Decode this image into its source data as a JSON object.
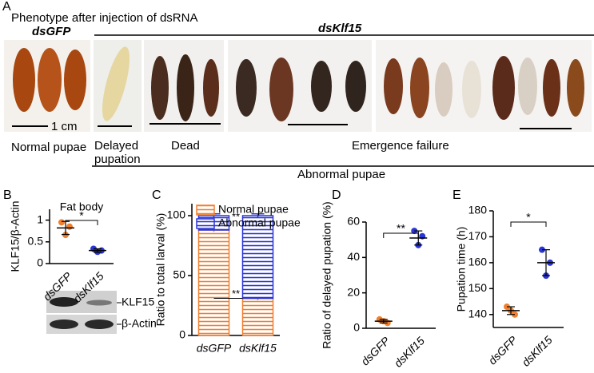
{
  "panel_a": {
    "label": "A",
    "title": "Phenotype after injection of dsRNA",
    "groups": [
      "dsGFP",
      "dsKlf15"
    ],
    "scale": "1 cm",
    "phenotypes": [
      "Normal pupae",
      "Delayed pupation",
      "Dead",
      "Emergence failure"
    ],
    "abnormal": "Abnormal pupae"
  },
  "chart_data": [
    {
      "type": "dot",
      "label": "B",
      "title": "Fat body",
      "ylabel": "KLF15/β-Actin",
      "categories": [
        "dsGFP",
        "dsKlf15"
      ],
      "colors": [
        "#f07f2e",
        "#2a35d6"
      ],
      "points": [
        [
          0.95,
          0.85,
          0.66
        ],
        [
          0.34,
          0.3,
          0.27
        ]
      ],
      "means": [
        0.82,
        0.3
      ],
      "sd": [
        0.15,
        0.04
      ],
      "ylim": [
        0,
        1.25
      ],
      "yticks": [
        0,
        0.5,
        1
      ],
      "significance": "*",
      "blot_labels": [
        "KLF15",
        "β-Actin"
      ]
    },
    {
      "type": "stacked_bar",
      "label": "C",
      "ylabel": "Ratio to total larval (%)",
      "categories": [
        "dsGFP",
        "dsKlf15"
      ],
      "series": [
        {
          "name": "Normal pupae",
          "color": "#f07f2e",
          "values": [
            88,
            31
          ],
          "errors": [
            1.5,
            1.5
          ]
        },
        {
          "name": "Abnormal pupae",
          "color": "#2a35d6",
          "values": [
            12,
            69
          ],
          "errors": [
            1.5,
            1.5
          ]
        }
      ],
      "ylim": [
        0,
        110
      ],
      "yticks": [
        0,
        50,
        100
      ],
      "annotations": [
        "**",
        "**"
      ]
    },
    {
      "type": "dot",
      "label": "D",
      "ylabel": "Ratio of delayed pupation (%)",
      "categories": [
        "dsGFP",
        "dsKlf15"
      ],
      "colors": [
        "#f07f2e",
        "#2a35d6"
      ],
      "points": [
        [
          5,
          3,
          4
        ],
        [
          55,
          52,
          47
        ]
      ],
      "means": [
        4,
        51
      ],
      "sd": [
        1,
        4
      ],
      "ylim": [
        0,
        60
      ],
      "yticks": [
        0,
        20,
        40,
        60
      ],
      "significance": "**"
    },
    {
      "type": "dot",
      "label": "E",
      "ylabel": "Pupation time (h)",
      "categories": [
        "dsGFP",
        "dsKlf15"
      ],
      "colors": [
        "#f07f2e",
        "#2a35d6"
      ],
      "points": [
        [
          143,
          140,
          141.5
        ],
        [
          165,
          160,
          155
        ]
      ],
      "means": [
        141.5,
        160
      ],
      "sd": [
        1.5,
        5
      ],
      "ylim": [
        135,
        180
      ],
      "yticks": [
        140,
        150,
        160,
        170,
        180
      ],
      "significance": "*"
    }
  ]
}
